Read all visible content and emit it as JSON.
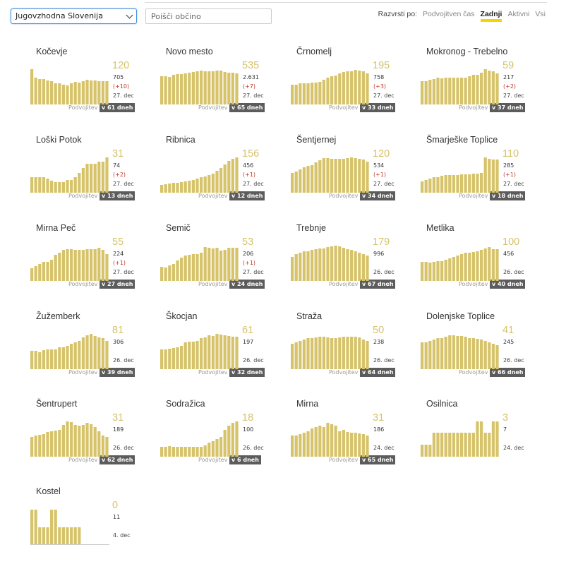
{
  "filters": {
    "region_value": "Jugovzhodna Slovenija",
    "search_placeholder": "Poišči občino"
  },
  "sort": {
    "label": "Razvrsti po:",
    "options": [
      "Podvojitven čas",
      "Zadnji",
      "Aktivni",
      "Vsi"
    ],
    "active": "Zadnji"
  },
  "colors": {
    "bar": "#d6c36a",
    "badge": "#5c5c5c",
    "accent": "#f5d400",
    "delta": "#c0392b"
  },
  "cards": [
    {
      "name": "Kočevje",
      "current": "120",
      "total": "705",
      "delta": "(+10)",
      "date": "27. dec",
      "double_label": "Podvojitev",
      "double_badge": "v 61 dneh",
      "bars": [
        50,
        38,
        36,
        36,
        34,
        33,
        30,
        30,
        28,
        27,
        30,
        32,
        31,
        33,
        35,
        34,
        34,
        33,
        33,
        33
      ]
    },
    {
      "name": "Novo mesto",
      "current": "535",
      "total": "2.631",
      "delta": "(+7)",
      "date": "27. dec",
      "double_label": "Podvojitev",
      "double_badge": "v 65 dneh",
      "bars": [
        40,
        40,
        39,
        42,
        43,
        43,
        44,
        45,
        46,
        47,
        48,
        47,
        47,
        47,
        48,
        48,
        46,
        45,
        45,
        44
      ]
    },
    {
      "name": "Črnomelj",
      "current": "195",
      "total": "758",
      "delta": "(+3)",
      "date": "27. dec",
      "double_label": "Podvojitev",
      "double_badge": "v 33 dneh",
      "bars": [
        28,
        28,
        30,
        30,
        30,
        31,
        31,
        32,
        35,
        38,
        40,
        41,
        44,
        46,
        47,
        47,
        49,
        48,
        47,
        44
      ]
    },
    {
      "name": "Mokronog - Trebelno",
      "current": "59",
      "total": "217",
      "delta": "(+2)",
      "date": "27. dec",
      "double_label": "Podvojitev",
      "double_badge": "v 37 dneh",
      "bars": [
        33,
        33,
        35,
        36,
        38,
        37,
        38,
        38,
        38,
        38,
        38,
        38,
        40,
        42,
        42,
        45,
        50,
        48,
        47,
        44
      ]
    },
    {
      "name": "Loški Potok",
      "current": "31",
      "total": "74",
      "delta": "(+2)",
      "date": "27. dec",
      "double_label": "Podvojitev",
      "double_badge": "v 13 dneh",
      "bars": [
        22,
        22,
        22,
        22,
        20,
        17,
        15,
        15,
        15,
        18,
        18,
        22,
        28,
        35,
        41,
        41,
        41,
        44,
        44,
        50
      ]
    },
    {
      "name": "Ribnica",
      "current": "156",
      "total": "456",
      "delta": "(+1)",
      "date": "27. dec",
      "double_label": "Podvojitev",
      "double_badge": "v 12 dneh",
      "bars": [
        11,
        12,
        13,
        14,
        14,
        15,
        16,
        17,
        18,
        20,
        22,
        23,
        25,
        27,
        31,
        35,
        40,
        45,
        48,
        50
      ]
    },
    {
      "name": "Šentjernej",
      "current": "120",
      "total": "534",
      "delta": "(+1)",
      "date": "27. dec",
      "double_label": "Podvojitev",
      "double_badge": "v 34 dneh",
      "bars": [
        28,
        30,
        33,
        36,
        38,
        39,
        43,
        46,
        49,
        49,
        48,
        48,
        48,
        48,
        49,
        50,
        49,
        48,
        47,
        44
      ]
    },
    {
      "name": "Šmarješke Toplice",
      "current": "110",
      "total": "285",
      "delta": "(+1)",
      "date": "27. dec",
      "double_label": "Podvojitev",
      "double_badge": "v 18 dneh",
      "bars": [
        16,
        18,
        20,
        22,
        22,
        24,
        25,
        25,
        25,
        25,
        26,
        26,
        26,
        27,
        27,
        28,
        50,
        48,
        47,
        47
      ]
    },
    {
      "name": "Mirna Peč",
      "current": "55",
      "total": "224",
      "delta": "(+1)",
      "date": "27. dec",
      "double_label": "Podvojitev",
      "double_badge": "v 27 dneh",
      "bars": [
        18,
        21,
        24,
        27,
        27,
        30,
        37,
        40,
        44,
        45,
        45,
        44,
        44,
        44,
        45,
        45,
        45,
        47,
        44,
        38
      ]
    },
    {
      "name": "Semič",
      "current": "53",
      "total": "206",
      "delta": "(+1)",
      "date": "27. dec",
      "double_label": "Podvojitev",
      "double_badge": "v 24 dneh",
      "bars": [
        20,
        19,
        22,
        24,
        29,
        33,
        36,
        37,
        38,
        38,
        40,
        48,
        47,
        46,
        47,
        43,
        44,
        47,
        47,
        47
      ]
    },
    {
      "name": "Trebnje",
      "current": "179",
      "total": "996",
      "delta": "",
      "date": "26. dec",
      "double_label": "Podvojitev",
      "double_badge": "v 67 dneh",
      "bars": [
        34,
        38,
        40,
        42,
        42,
        44,
        45,
        46,
        46,
        48,
        49,
        50,
        49,
        47,
        45,
        44,
        42,
        40,
        38,
        36
      ]
    },
    {
      "name": "Metlika",
      "current": "100",
      "total": "456",
      "delta": "",
      "date": "26. dec",
      "double_label": "Podvojitev",
      "double_badge": "v 40 dneh",
      "bars": [
        27,
        27,
        26,
        27,
        28,
        28,
        30,
        32,
        34,
        36,
        38,
        40,
        40,
        41,
        42,
        44,
        46,
        48,
        45,
        45
      ]
    },
    {
      "name": "Žužemberk",
      "current": "81",
      "total": "306",
      "delta": "",
      "date": "26. dec",
      "double_label": "Podvojitev",
      "double_badge": "v 39 dneh",
      "bars": [
        26,
        26,
        24,
        27,
        28,
        28,
        28,
        31,
        31,
        33,
        36,
        38,
        40,
        45,
        48,
        50,
        47,
        45,
        44,
        40
      ]
    },
    {
      "name": "Škocjan",
      "current": "61",
      "total": "197",
      "delta": "",
      "date": "26. dec",
      "double_label": "Podvojitev",
      "double_badge": "v 32 dneh",
      "bars": [
        28,
        28,
        29,
        30,
        31,
        33,
        38,
        39,
        39,
        40,
        44,
        45,
        48,
        47,
        50,
        49,
        48,
        47,
        46,
        46
      ]
    },
    {
      "name": "Straža",
      "current": "50",
      "total": "238",
      "delta": "",
      "date": "26. dec",
      "double_label": "Podvojitev",
      "double_badge": "v 64 dneh",
      "bars": [
        36,
        38,
        40,
        42,
        44,
        44,
        45,
        46,
        46,
        45,
        44,
        44,
        45,
        46,
        46,
        46,
        46,
        45,
        42,
        40
      ]
    },
    {
      "name": "Dolenjske Toplice",
      "current": "41",
      "total": "245",
      "delta": "",
      "date": "26. dec",
      "double_label": "Podvojitev",
      "double_badge": "v 66 dneh",
      "bars": [
        38,
        38,
        40,
        42,
        44,
        44,
        46,
        48,
        48,
        47,
        47,
        46,
        44,
        44,
        43,
        42,
        40,
        38,
        36,
        34
      ]
    },
    {
      "name": "Šentrupert",
      "current": "31",
      "total": "189",
      "delta": "",
      "date": "26. dec",
      "double_label": "Podvojitev",
      "double_badge": "v 62 dneh",
      "bars": [
        28,
        30,
        31,
        32,
        35,
        36,
        37,
        38,
        45,
        50,
        49,
        45,
        44,
        45,
        48,
        46,
        42,
        36,
        30,
        28
      ]
    },
    {
      "name": "Sodražica",
      "current": "18",
      "total": "100",
      "delta": "",
      "date": "26. dec",
      "double_label": "Podvojitev",
      "double_badge": "v 6 dneh",
      "bars": [
        14,
        14,
        15,
        14,
        14,
        14,
        14,
        14,
        14,
        14,
        14,
        16,
        20,
        22,
        25,
        28,
        38,
        44,
        48,
        50
      ]
    },
    {
      "name": "Mirna",
      "current": "31",
      "total": "186",
      "delta": "",
      "date": "24. dec",
      "double_label": "Podvojitev",
      "double_badge": "v 65 dneh",
      "bars": [
        30,
        30,
        32,
        34,
        36,
        40,
        42,
        44,
        42,
        48,
        46,
        44,
        36,
        38,
        35,
        34,
        34,
        33,
        32,
        30
      ]
    },
    {
      "name": "Osilnica",
      "current": "3",
      "total": "7",
      "delta": "",
      "date": "24. dec",
      "double_label": "",
      "double_badge": "",
      "bars": [
        17,
        17,
        17,
        34,
        34,
        34,
        34,
        34,
        34,
        34,
        34,
        34,
        34,
        34,
        50,
        50,
        34,
        34,
        50,
        50
      ]
    },
    {
      "name": "Kostel",
      "current": "0",
      "total": "11",
      "delta": "",
      "date": "4. dec",
      "double_label": "",
      "double_badge": "",
      "bars": [
        49,
        49,
        24,
        24,
        24,
        49,
        49,
        24,
        24,
        24,
        24,
        24,
        24,
        0,
        0,
        0,
        0,
        0,
        0,
        0
      ]
    }
  ]
}
